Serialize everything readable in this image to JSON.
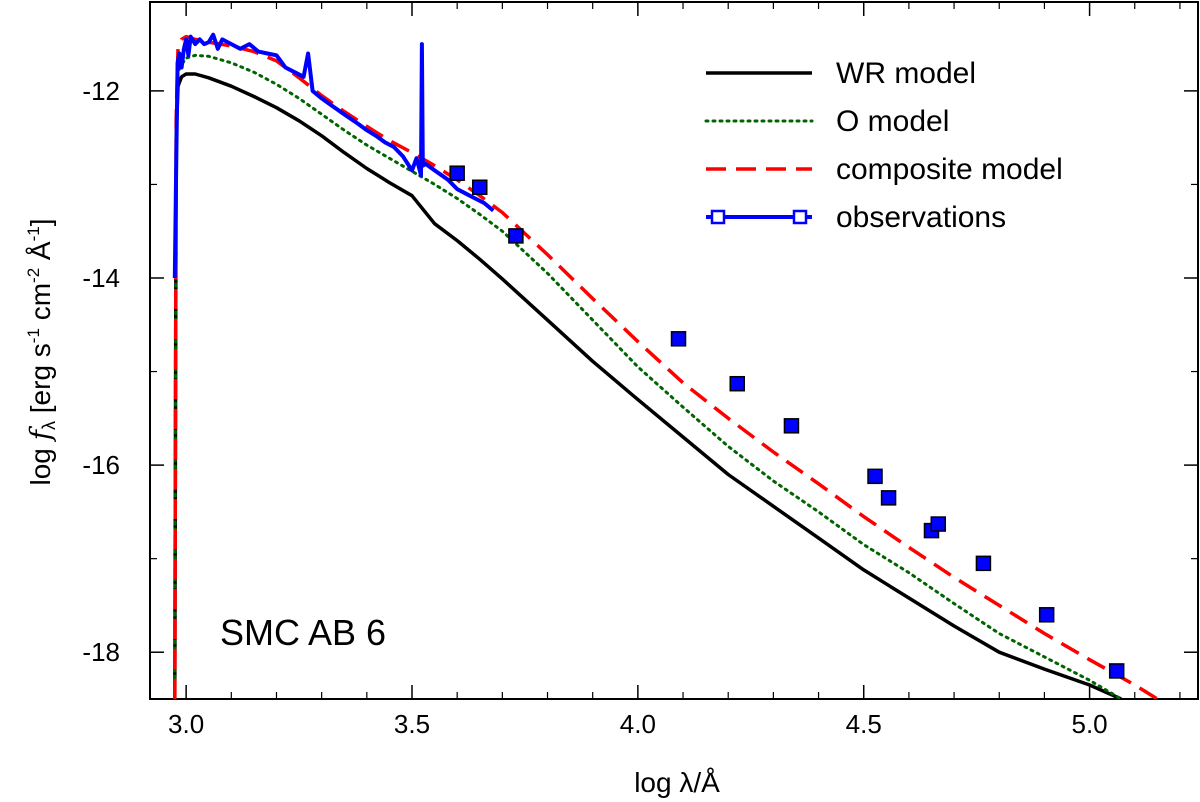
{
  "chart_data": {
    "type": "line",
    "xlabel": "log λ/Å",
    "ylabel_parts": {
      "prefix": "log ",
      "f": "f",
      "lambda_sub": "λ",
      "bracket_open": " [erg s",
      "exp1": "-1",
      "cm": " cm",
      "exp2": "-2",
      "angstrom": " Å",
      "exp3": "-1",
      "bracket_close": "]"
    },
    "xlim": [
      2.92,
      5.24
    ],
    "ylim": [
      -18.5,
      -11.05
    ],
    "x_ticks": [
      3.0,
      3.5,
      4.0,
      4.5,
      5.0
    ],
    "x_tick_labels": [
      "3.0",
      "3.5",
      "4.0",
      "4.5",
      "5.0"
    ],
    "y_ticks": [
      -12,
      -14,
      -16,
      -18
    ],
    "y_tick_labels": [
      "-12",
      "-14",
      "-16",
      "-18"
    ],
    "x_minor_ticks": [
      3.1,
      3.2,
      3.3,
      3.4,
      3.6,
      3.7,
      3.8,
      3.9,
      4.1,
      4.2,
      4.3,
      4.4,
      4.6,
      4.7,
      4.8,
      4.9,
      5.1,
      5.2
    ],
    "y_minor_ticks": [
      -11,
      -13,
      -15,
      -17
    ],
    "grid": false,
    "legend_position": "top-right",
    "annotation": "SMC AB 6",
    "series": [
      {
        "name": "WR model",
        "color": "#000000",
        "style": "solid",
        "x": [
          2.975,
          2.978,
          2.982,
          2.99,
          3.0,
          3.02,
          3.05,
          3.1,
          3.15,
          3.2,
          3.25,
          3.3,
          3.35,
          3.4,
          3.45,
          3.5,
          3.55,
          3.6,
          3.65,
          3.7,
          3.8,
          3.9,
          4.0,
          4.1,
          4.2,
          4.3,
          4.4,
          4.5,
          4.6,
          4.7,
          4.8,
          4.9,
          5.0,
          5.07
        ],
        "y": [
          -18.5,
          -12.5,
          -11.95,
          -11.85,
          -11.82,
          -11.82,
          -11.86,
          -11.95,
          -12.06,
          -12.18,
          -12.32,
          -12.48,
          -12.66,
          -12.83,
          -12.98,
          -13.12,
          -13.42,
          -13.6,
          -13.8,
          -14.01,
          -14.45,
          -14.89,
          -15.3,
          -15.7,
          -16.1,
          -16.44,
          -16.78,
          -17.12,
          -17.42,
          -17.72,
          -18.0,
          -18.18,
          -18.35,
          -18.5
        ]
      },
      {
        "name": "O model",
        "color": "#006400",
        "style": "dotted",
        "x": [
          2.975,
          2.978,
          2.982,
          2.99,
          3.0,
          3.02,
          3.05,
          3.1,
          3.15,
          3.2,
          3.25,
          3.3,
          3.35,
          3.4,
          3.45,
          3.5,
          3.55,
          3.6,
          3.65,
          3.7,
          3.8,
          3.9,
          4.0,
          4.1,
          4.2,
          4.3,
          4.4,
          4.5,
          4.6,
          4.7,
          4.8,
          4.9,
          5.0,
          5.07
        ],
        "y": [
          -18.5,
          -12.5,
          -11.8,
          -11.72,
          -11.65,
          -11.62,
          -11.63,
          -11.7,
          -11.8,
          -11.93,
          -12.08,
          -12.25,
          -12.42,
          -12.58,
          -12.72,
          -12.86,
          -13.0,
          -13.15,
          -13.32,
          -13.5,
          -13.95,
          -14.45,
          -14.95,
          -15.38,
          -15.8,
          -16.17,
          -16.5,
          -16.85,
          -17.15,
          -17.48,
          -17.8,
          -18.05,
          -18.3,
          -18.5
        ]
      },
      {
        "name": "composite model",
        "color": "#ff0000",
        "style": "dashed",
        "x": [
          2.975,
          2.978,
          2.982,
          2.99,
          3.0,
          3.02,
          3.05,
          3.1,
          3.15,
          3.2,
          3.25,
          3.3,
          3.35,
          3.4,
          3.45,
          3.5,
          3.55,
          3.6,
          3.65,
          3.7,
          3.8,
          3.9,
          4.0,
          4.1,
          4.2,
          4.3,
          4.4,
          4.5,
          4.6,
          4.7,
          4.8,
          4.9,
          5.0,
          5.1,
          5.15
        ],
        "y": [
          -18.5,
          -12.3,
          -11.55,
          -11.45,
          -11.42,
          -11.45,
          -11.48,
          -11.52,
          -11.58,
          -11.68,
          -11.86,
          -12.05,
          -12.22,
          -12.38,
          -12.53,
          -12.66,
          -12.8,
          -12.95,
          -13.12,
          -13.3,
          -13.75,
          -14.22,
          -14.68,
          -15.12,
          -15.5,
          -15.86,
          -16.2,
          -16.55,
          -16.88,
          -17.2,
          -17.5,
          -17.8,
          -18.08,
          -18.35,
          -18.5
        ]
      },
      {
        "name": "observations",
        "color": "#0000ff",
        "style": "solid",
        "spectrum_x": [
          2.975,
          2.978,
          2.981,
          2.985,
          2.99,
          2.995,
          3.0,
          3.005,
          3.01,
          3.02,
          3.03,
          3.04,
          3.05,
          3.06,
          3.07,
          3.08,
          3.1,
          3.12,
          3.14,
          3.16,
          3.18,
          3.2,
          3.22,
          3.24,
          3.26,
          3.27,
          3.28,
          3.3,
          3.32,
          3.35,
          3.38,
          3.4,
          3.42,
          3.44,
          3.46,
          3.48,
          3.5,
          3.51,
          3.52,
          3.522,
          3.524,
          3.53,
          3.55,
          3.58,
          3.6,
          3.62,
          3.64,
          3.66,
          3.68
        ],
        "spectrum_y": [
          -14.0,
          -12.8,
          -11.7,
          -11.6,
          -11.75,
          -11.55,
          -11.45,
          -11.62,
          -11.42,
          -11.5,
          -11.45,
          -11.5,
          -11.48,
          -11.4,
          -11.55,
          -11.45,
          -11.5,
          -11.55,
          -11.5,
          -11.58,
          -11.6,
          -11.62,
          -11.75,
          -11.8,
          -11.85,
          -11.6,
          -12.0,
          -12.08,
          -12.15,
          -12.25,
          -12.35,
          -12.42,
          -12.48,
          -12.55,
          -12.6,
          -12.7,
          -12.85,
          -12.72,
          -12.9,
          -11.5,
          -12.8,
          -12.78,
          -12.85,
          -12.95,
          -13.05,
          -13.1,
          -13.15,
          -13.2,
          -13.28
        ],
        "photometry_x": [
          3.6,
          3.65,
          3.73,
          4.09,
          4.22,
          4.34,
          4.525,
          4.555,
          4.65,
          4.665,
          4.765,
          4.905,
          5.06
        ],
        "photometry_y": [
          -12.88,
          -13.03,
          -13.55,
          -14.65,
          -15.13,
          -15.58,
          -16.12,
          -16.35,
          -16.7,
          -16.63,
          -17.05,
          -17.6,
          -18.2
        ]
      }
    ]
  }
}
